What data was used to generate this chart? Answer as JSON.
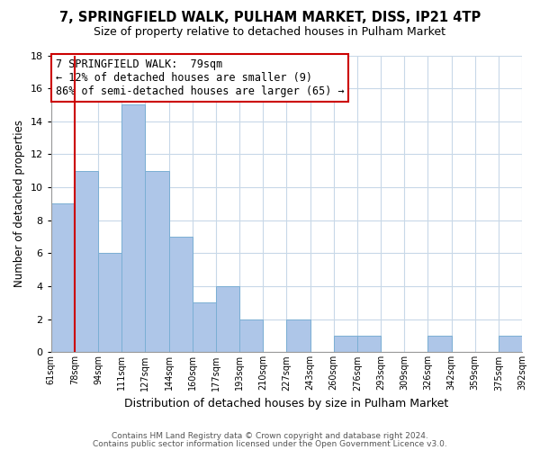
{
  "title": "7, SPRINGFIELD WALK, PULHAM MARKET, DISS, IP21 4TP",
  "subtitle": "Size of property relative to detached houses in Pulham Market",
  "xlabel": "Distribution of detached houses by size in Pulham Market",
  "ylabel": "Number of detached properties",
  "bin_labels": [
    "61sqm",
    "78sqm",
    "94sqm",
    "111sqm",
    "127sqm",
    "144sqm",
    "160sqm",
    "177sqm",
    "193sqm",
    "210sqm",
    "227sqm",
    "243sqm",
    "260sqm",
    "276sqm",
    "293sqm",
    "309sqm",
    "326sqm",
    "342sqm",
    "359sqm",
    "375sqm",
    "392sqm"
  ],
  "bar_heights": [
    9,
    11,
    6,
    15,
    11,
    7,
    3,
    4,
    2,
    0,
    2,
    0,
    1,
    1,
    0,
    0,
    1,
    0,
    0,
    1
  ],
  "bar_color": "#aec6e8",
  "bar_edge_color": "#7bafd4",
  "marker_color": "#cc0000",
  "ylim": [
    0,
    18
  ],
  "yticks": [
    0,
    2,
    4,
    6,
    8,
    10,
    12,
    14,
    16,
    18
  ],
  "annotation_title": "7 SPRINGFIELD WALK:  79sqm",
  "annotation_line1": "← 12% of detached houses are smaller (9)",
  "annotation_line2": "86% of semi-detached houses are larger (65) →",
  "footer_line1": "Contains HM Land Registry data © Crown copyright and database right 2024.",
  "footer_line2": "Contains public sector information licensed under the Open Government Licence v3.0.",
  "background_color": "#ffffff",
  "grid_color": "#c8d8e8"
}
